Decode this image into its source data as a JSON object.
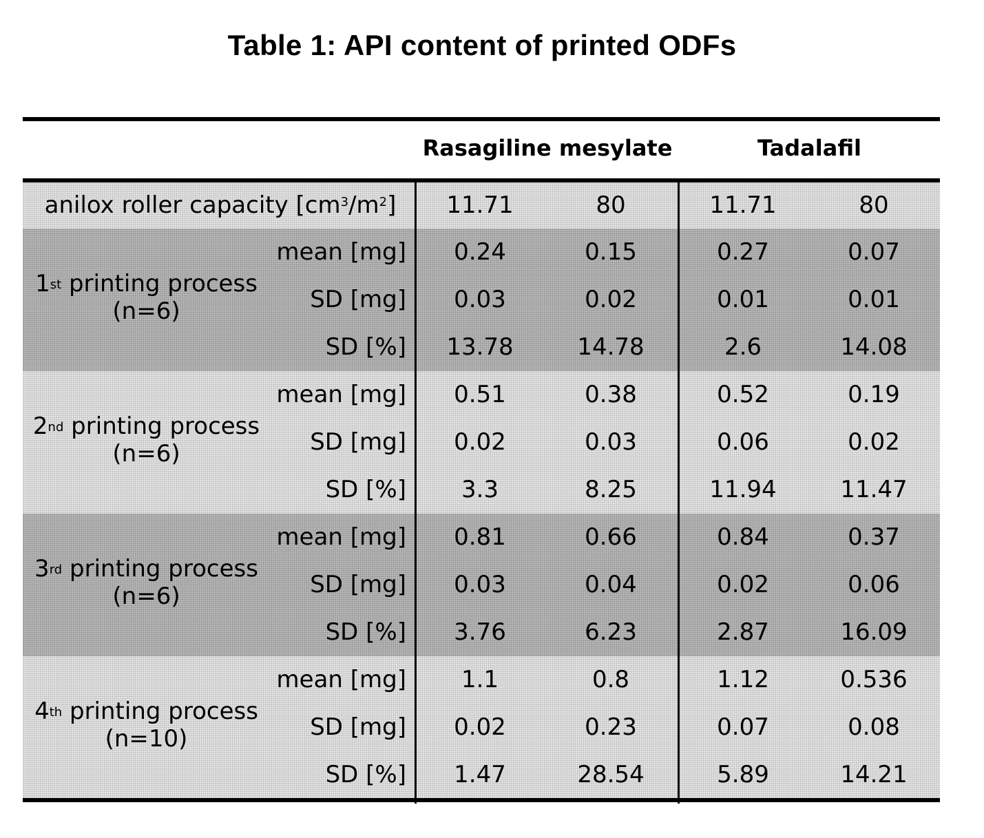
{
  "title": "Table 1: API content of printed ODFs",
  "headers": {
    "rasagiline": "Rasagiline mesylate",
    "tadalafil": "Tadalafil"
  },
  "anilox": {
    "label_pre": "anilox roller capacity [cm",
    "sup1": "3",
    "label_mid": "/m",
    "sup2": "2",
    "label_post": "]",
    "values": [
      "11.71",
      "80",
      "11.71",
      "80"
    ]
  },
  "processes": [
    {
      "ordinal": "1",
      "suffix": "st",
      "name": " printing process",
      "n": "(n=6)",
      "rows": [
        {
          "label": "mean [mg]",
          "values": [
            "0.24",
            "0.15",
            "0.27",
            "0.07"
          ]
        },
        {
          "label": "SD [mg]",
          "values": [
            "0.03",
            "0.02",
            "0.01",
            "0.01"
          ]
        },
        {
          "label": "SD [%]",
          "values": [
            "13.78",
            "14.78",
            "2.6",
            "14.08"
          ]
        }
      ]
    },
    {
      "ordinal": "2",
      "suffix": "nd",
      "name": " printing process",
      "n": "(n=6)",
      "rows": [
        {
          "label": "mean [mg]",
          "values": [
            "0.51",
            "0.38",
            "0.52",
            "0.19"
          ]
        },
        {
          "label": "SD [mg]",
          "values": [
            "0.02",
            "0.03",
            "0.06",
            "0.02"
          ]
        },
        {
          "label": "SD [%]",
          "values": [
            "3.3",
            "8.25",
            "11.94",
            "11.47"
          ]
        }
      ]
    },
    {
      "ordinal": "3",
      "suffix": "rd",
      "name": " printing process",
      "n": "(n=6)",
      "rows": [
        {
          "label": "mean [mg]",
          "values": [
            "0.81",
            "0.66",
            "0.84",
            "0.37"
          ]
        },
        {
          "label": "SD [mg]",
          "values": [
            "0.03",
            "0.04",
            "0.02",
            "0.06"
          ]
        },
        {
          "label": "SD [%]",
          "values": [
            "3.76",
            "6.23",
            "2.87",
            "16.09"
          ]
        }
      ]
    },
    {
      "ordinal": "4",
      "suffix": "th",
      "name": " printing process",
      "n": "(n=10)",
      "rows": [
        {
          "label": "mean [mg]",
          "values": [
            "1.1",
            "0.8",
            "1.12",
            "0.536"
          ]
        },
        {
          "label": "SD [mg]",
          "values": [
            "0.02",
            "0.23",
            "0.07",
            "0.08"
          ]
        },
        {
          "label": "SD [%]",
          "values": [
            "1.47",
            "28.54",
            "5.89",
            "14.21"
          ]
        }
      ]
    }
  ]
}
